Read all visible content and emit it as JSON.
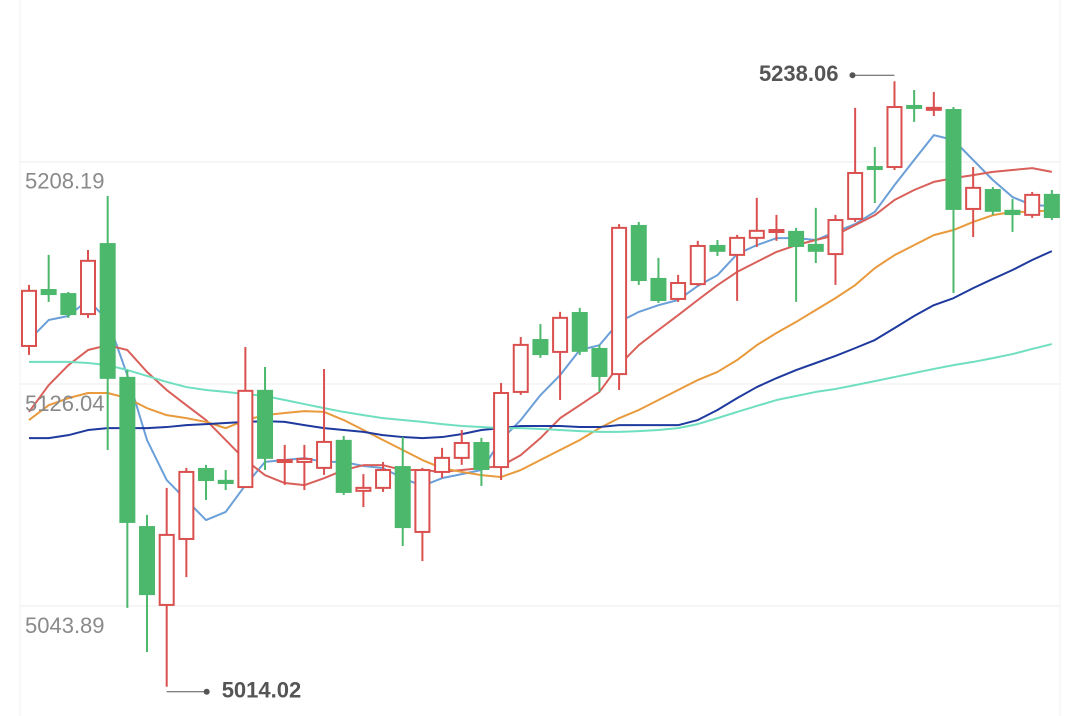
{
  "chart_data": {
    "type": "candlestick",
    "open": [
      5140.1,
      5160.8,
      5159.3,
      5151.9,
      5177.8,
      5128.3,
      5073.1,
      5044.3,
      5068.7,
      5094.6,
      5090.2,
      5087.9,
      5123.5,
      5097.2,
      5097.2,
      5095.0,
      5105.0,
      5086.5,
      5087.6,
      5095.3,
      5071.3,
      5093.5,
      5098.7,
      5104.2,
      5095.3,
      5123.1,
      5142.3,
      5137.9,
      5152.3,
      5139.0,
      5129.7,
      5184.5,
      5164.9,
      5157.5,
      5163.0,
      5177.1,
      5173.8,
      5180.1,
      5182.3,
      5182.3,
      5177.5,
      5174.1,
      5187.1,
      5206.3,
      5206.3,
      5228.9,
      5227.8,
      5227.4,
      5190.8,
      5197.8,
      5190.1,
      5188.6,
      5196.0
    ],
    "high": [
      5162.7,
      5173.8,
      5160.1,
      5175.6,
      5195.6,
      5131.2,
      5077.6,
      5087.6,
      5095.0,
      5096.1,
      5094.2,
      5139.7,
      5132.3,
      5103.5,
      5103.5,
      5131.6,
      5106.8,
      5092.7,
      5097.2,
      5106.4,
      5095.0,
      5102.4,
      5109.0,
      5106.1,
      5126.4,
      5143.4,
      5148.2,
      5152.7,
      5154.2,
      5140.5,
      5185.2,
      5186.0,
      5172.7,
      5166.4,
      5179.0,
      5179.3,
      5181.2,
      5194.9,
      5188.6,
      5183.8,
      5191.2,
      5188.6,
      5228.2,
      5213.7,
      5238.06,
      5234.8,
      5234.1,
      5228.5,
      5206.3,
      5198.9,
      5194.5,
      5197.1,
      5197.8
    ],
    "low": [
      5136.8,
      5156.4,
      5150.5,
      5150.5,
      5101.6,
      5043.2,
      5026.9,
      5014.02,
      5054.6,
      5083.1,
      5086.8,
      5087.6,
      5094.2,
      5088.7,
      5086.8,
      5092.4,
      5085.0,
      5080.5,
      5086.1,
      5066.1,
      5060.5,
      5091.3,
      5096.1,
      5088.3,
      5090.5,
      5122.0,
      5135.7,
      5120.1,
      5136.8,
      5123.1,
      5123.8,
      5162.7,
      5156.0,
      5156.4,
      5162.3,
      5173.4,
      5156.8,
      5176.7,
      5179.0,
      5156.4,
      5170.8,
      5162.7,
      5186.0,
      5193.0,
      5205.2,
      5223.0,
      5225.2,
      5159.7,
      5180.4,
      5188.6,
      5182.3,
      5187.5,
      5186.7
    ],
    "close": [
      5160.5,
      5159.3,
      5151.9,
      5171.6,
      5128.3,
      5075.0,
      5048.3,
      5070.2,
      5093.5,
      5090.5,
      5089.4,
      5123.5,
      5098.7,
      5097.9,
      5098.3,
      5104.6,
      5086.1,
      5087.6,
      5094.2,
      5073.1,
      5094.2,
      5098.7,
      5104.2,
      5094.6,
      5122.7,
      5140.5,
      5137.1,
      5150.5,
      5138.3,
      5129.0,
      5183.8,
      5164.5,
      5157.1,
      5163.4,
      5177.1,
      5175.3,
      5180.1,
      5182.7,
      5183.0,
      5177.1,
      5175.3,
      5186.7,
      5204.1,
      5205.6,
      5228.5,
      5228.2,
      5228.2,
      5190.8,
      5198.6,
      5190.1,
      5188.9,
      5196.0,
      5187.8
    ],
    "up_color": "#d9504f",
    "down_color": "#4cb86c",
    "series": [
      {
        "color": "#6a9fd8",
        "values": [
          5142.3,
          5149.7,
          5151.2,
          5157.1,
          5149.7,
          5129.3,
          5105.3,
          5090.5,
          5083.1,
          5075.7,
          5078.7,
          5088.6,
          5097.2,
          5097.9,
          5098.6,
          5097.2,
          5097.2,
          5095.7,
          5094.9,
          5091.2,
          5088.3,
          5091.2,
          5092.7,
          5094.2,
          5105.3,
          5112.7,
          5121.9,
          5129.3,
          5138.6,
          5140.4,
          5149.0,
          5152.7,
          5155.2,
          5157.1,
          5162.3,
          5166.3,
          5174.1,
          5177.4,
          5180.0,
          5180.0,
          5179.3,
          5182.3,
          5185.2,
          5189.7,
          5199.6,
          5208.9,
          5218.1,
          5216.3,
          5208.9,
          5201.5,
          5195.2,
          5192.2,
          5191.9
        ]
      },
      {
        "color": "#d9605a",
        "values": [
          5115.7,
          5125.6,
          5133.0,
          5138.6,
          5140.4,
          5138.6,
          5130.5,
          5123.8,
          5118.2,
          5112.7,
          5105.3,
          5097.9,
          5092.3,
          5089.4,
          5088.6,
          5091.2,
          5094.2,
          5096.0,
          5096.0,
          5094.2,
          5094.2,
          5093.5,
          5094.2,
          5094.9,
          5095.7,
          5099.7,
          5106.0,
          5113.4,
          5118.2,
          5123.1,
          5133.0,
          5140.4,
          5146.0,
          5151.5,
          5157.1,
          5162.6,
          5167.5,
          5171.2,
          5174.9,
          5177.4,
          5179.3,
          5181.1,
          5184.8,
          5188.5,
          5194.1,
          5197.8,
          5200.8,
          5202.2,
          5203.3,
          5204.5,
          5205.2,
          5205.9,
          5204.5
        ]
      },
      {
        "color": "#e89a3c",
        "values": [
          5112.7,
          5118.2,
          5120.8,
          5122.7,
          5122.7,
          5120.8,
          5117.1,
          5114.5,
          5113.4,
          5112.0,
          5109.7,
          5112.7,
          5114.5,
          5115.3,
          5116.0,
          5115.7,
          5112.7,
          5109.0,
          5105.3,
          5101.6,
          5097.9,
          5094.9,
          5093.5,
          5092.3,
          5091.6,
          5094.2,
          5097.9,
          5101.6,
          5105.3,
          5109.7,
          5113.4,
          5116.4,
          5120.1,
          5123.8,
          5127.5,
          5130.5,
          5134.9,
          5140.4,
          5144.9,
          5149.0,
          5153.4,
          5157.8,
          5162.6,
          5168.9,
          5173.7,
          5177.4,
          5181.1,
          5183.0,
          5186.0,
          5188.5,
          5189.7,
          5189.7,
          5190.4
        ]
      },
      {
        "color": "#1f3a9e",
        "values": [
          5106.0,
          5106.0,
          5107.1,
          5109.0,
          5109.7,
          5109.7,
          5109.7,
          5110.1,
          5110.8,
          5111.2,
          5111.6,
          5112.0,
          5112.3,
          5112.0,
          5110.8,
          5109.7,
          5109.0,
          5108.3,
          5107.1,
          5106.4,
          5106.0,
          5106.4,
          5107.5,
          5109.0,
          5109.7,
          5110.5,
          5110.5,
          5110.5,
          5110.1,
          5110.1,
          5110.8,
          5110.8,
          5110.8,
          5110.8,
          5112.7,
          5116.4,
          5120.8,
          5124.9,
          5128.2,
          5131.2,
          5133.8,
          5136.4,
          5139.3,
          5142.3,
          5146.7,
          5151.2,
          5155.2,
          5157.8,
          5161.5,
          5164.9,
          5168.2,
          5171.9,
          5175.2
        ]
      },
      {
        "color": "#6fdfc0",
        "values": [
          5134.2,
          5134.2,
          5134.2,
          5133.8,
          5133.0,
          5131.2,
          5129.0,
          5126.8,
          5124.9,
          5123.8,
          5123.1,
          5122.3,
          5121.6,
          5120.1,
          5118.6,
          5117.1,
          5115.7,
          5114.5,
          5113.4,
          5112.7,
          5112.0,
          5111.2,
          5110.5,
          5110.1,
          5109.7,
          5109.7,
          5109.4,
          5109.0,
          5108.6,
          5108.3,
          5108.3,
          5108.6,
          5109.0,
          5109.7,
          5111.2,
          5113.4,
          5115.7,
          5117.9,
          5120.1,
          5121.6,
          5123.1,
          5124.2,
          5125.6,
          5127.1,
          5128.6,
          5130.1,
          5131.6,
          5133.0,
          5134.2,
          5135.6,
          5137.1,
          5139.0,
          5140.8
        ]
      }
    ],
    "ylim": [
      5003.2,
      5268.1
    ],
    "yticks": [
      5208.19,
      5126.04,
      5043.89
    ],
    "grid": true,
    "annotations": [
      {
        "value": 5238.06,
        "label": "5238.06"
      },
      {
        "value": 5014.02,
        "label": "5014.02"
      }
    ]
  }
}
